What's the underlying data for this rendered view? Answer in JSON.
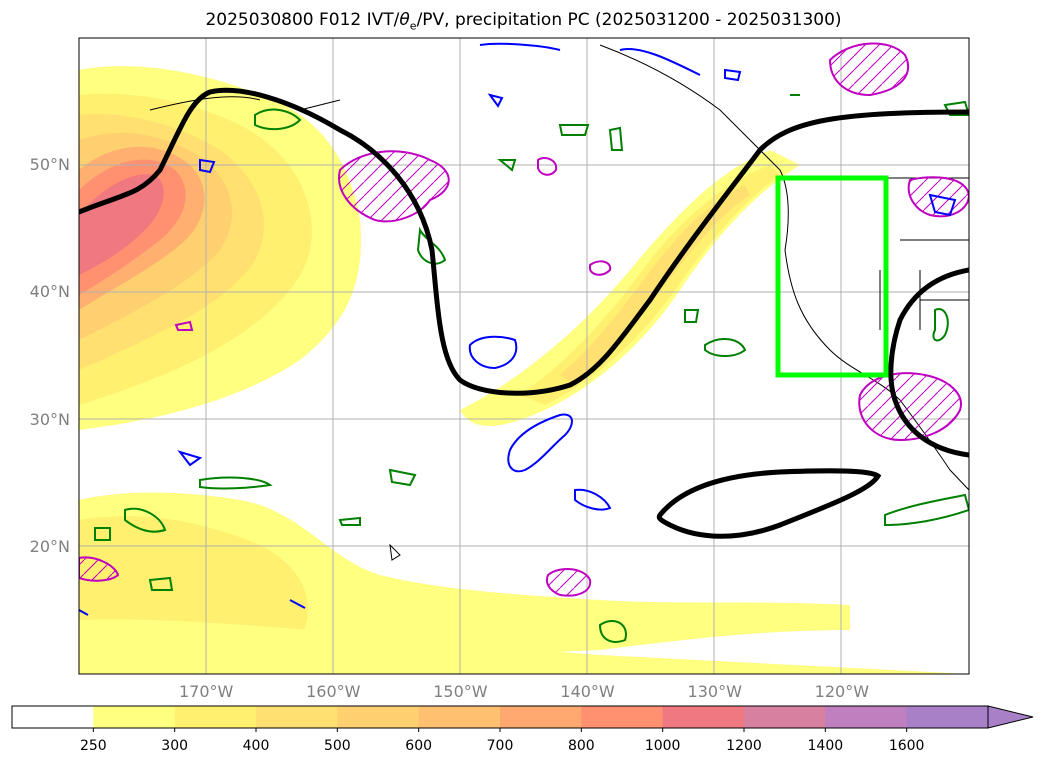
{
  "title": "2025030800 F012 IVT/θe/PV, precipitation PC (2025031200 - 2025031300)",
  "title_parts": {
    "prefix": "2025030800 F012 IVT/",
    "theta": "θ",
    "theta_sub": "e",
    "suffix": "/PV, precipitation PC (2025031200 - 2025031300)"
  },
  "map": {
    "lon_range": [
      -180,
      -110
    ],
    "lat_range": [
      10,
      60
    ],
    "lat_ticks": [
      {
        "value": 20,
        "label": "20°N"
      },
      {
        "value": 30,
        "label": "30°N"
      },
      {
        "value": 40,
        "label": "40°N"
      },
      {
        "value": 50,
        "label": "50°N"
      }
    ],
    "lon_ticks": [
      {
        "value": -170,
        "label": "170°W"
      },
      {
        "value": -160,
        "label": "160°W"
      },
      {
        "value": -150,
        "label": "150°W"
      },
      {
        "value": -140,
        "label": "140°W"
      },
      {
        "value": -130,
        "label": "130°W"
      },
      {
        "value": -120,
        "label": "120°W"
      }
    ],
    "gridlines": true,
    "highlight_box": {
      "lon": [
        -125,
        -116.5
      ],
      "lat": [
        33.5,
        49
      ],
      "color": "#00ff00"
    },
    "colors": {
      "theta_e_contour": "#000000",
      "pv_contour": "#c000c0",
      "blue_contour": "#0000ff",
      "green_contour": "#008000",
      "coastline": "#000000"
    }
  },
  "colorbar": {
    "levels": [
      "250",
      "300",
      "400",
      "500",
      "600",
      "700",
      "800",
      "1000",
      "1200",
      "1400",
      "1600"
    ],
    "colors": [
      "#ffffff",
      "#ffff80",
      "#fff070",
      "#ffe070",
      "#ffd070",
      "#ffc070",
      "#ffa870",
      "#ff9070",
      "#f07880",
      "#d880a0",
      "#c080c0",
      "#a880c8"
    ],
    "extend": "max"
  }
}
